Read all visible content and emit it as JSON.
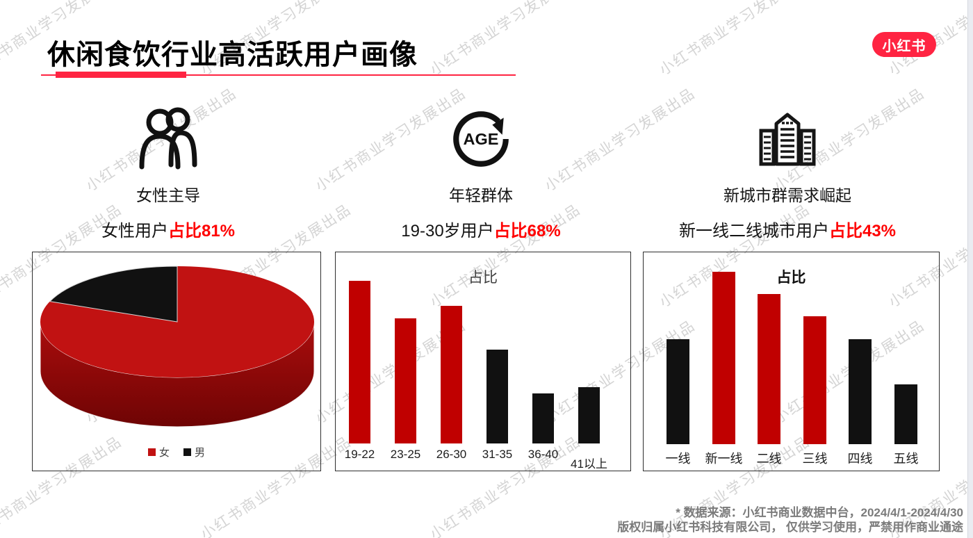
{
  "header": {
    "title": "休闲食饮行业高活跃用户画像",
    "logo_text": "小红书"
  },
  "features": [
    {
      "icon": "users-icon",
      "title": "女性主导",
      "stat_prefix": "女性用户",
      "stat_highlight": "占比81%"
    },
    {
      "icon": "age-cycle-icon",
      "title": "年轻群体",
      "stat_prefix": "19-30岁用户",
      "stat_highlight": "占比68%"
    },
    {
      "icon": "city-buildings-icon",
      "title": "新城市群需求崛起",
      "stat_prefix": "新一线二线城市用户",
      "stat_highlight": "占比43%"
    }
  ],
  "chart_data": [
    {
      "type": "pie",
      "title": "",
      "labels": [
        "女",
        "男"
      ],
      "values": [
        81,
        19
      ],
      "colors": [
        "#C11212",
        "#111111"
      ],
      "legend": [
        "女",
        "男"
      ],
      "legend_position": "bottom",
      "style": "3d"
    },
    {
      "type": "bar",
      "title": "占比",
      "categories": [
        "19-22",
        "23-25",
        "26-30",
        "31-35",
        "36-40",
        "41以上"
      ],
      "values": [
        26,
        20,
        22,
        15,
        8,
        9
      ],
      "unit": "%",
      "colors": [
        "#C00000",
        "#C00000",
        "#C00000",
        "#111111",
        "#111111",
        "#111111"
      ],
      "ylabel": "",
      "xlabel": "",
      "grid": false,
      "yaxis_visible": false
    },
    {
      "type": "bar",
      "title": "占比",
      "categories": [
        "一线",
        "新一线",
        "二线",
        "三线",
        "四线",
        "五线"
      ],
      "values": [
        14,
        23,
        20,
        17,
        14,
        8
      ],
      "unit": "%",
      "colors": [
        "#111111",
        "#C00000",
        "#C00000",
        "#C00000",
        "#111111",
        "#111111"
      ],
      "ylabel": "",
      "xlabel": "",
      "grid": false,
      "yaxis_visible": false
    }
  ],
  "footer": {
    "line1": "* 数据来源：小红书商业数据中台，2024/4/1-2024/4/30",
    "line2": "版权归属小红书科技有限公司， 仅供学习使用，严禁用作商业通途"
  },
  "watermark": {
    "text": "小红书商业学习发展出品"
  },
  "colors": {
    "brand_red": "#FF2442",
    "bar_red": "#C00000",
    "highlight_red": "#FF0000",
    "pie_red": "#C11212",
    "black": "#111111"
  }
}
